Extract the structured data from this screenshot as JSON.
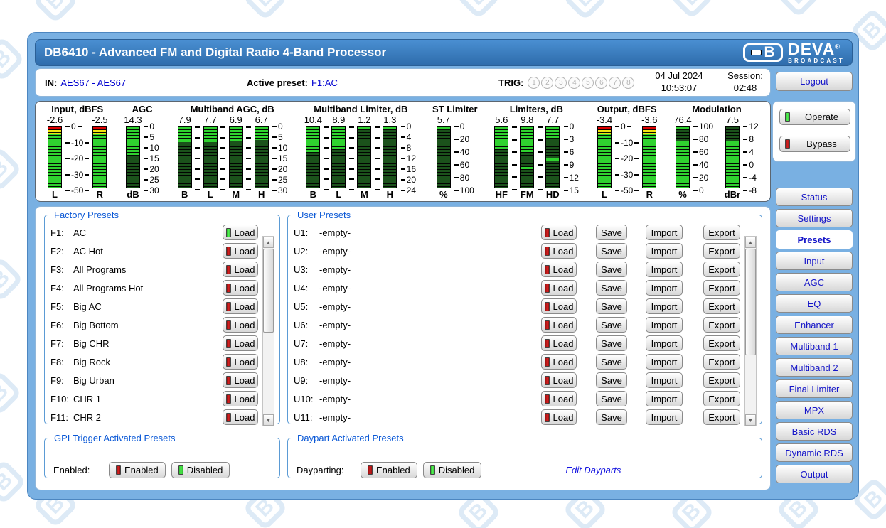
{
  "window": {
    "title": "DB6410 - Advanced FM and Digital Radio 4-Band Processor"
  },
  "branding": {
    "logo_deva": "DEVA",
    "logo_reg": "®",
    "logo_broadcast": "BROADCAST",
    "logo_emblem_letter": "B",
    "watermark_glyph": "B"
  },
  "statusbar": {
    "in_label": "IN:",
    "in_value": "AES67 - AES67",
    "preset_label": "Active preset:",
    "preset_value": "F1:AC",
    "trig_label": "TRIG:",
    "trig_buttons": [
      "1",
      "2",
      "3",
      "4",
      "5",
      "6",
      "7",
      "8"
    ],
    "date": "04 Jul 2024",
    "time": "10:53:07",
    "session_label": "Session:",
    "session_value": "02:48"
  },
  "sidebar": {
    "logout_label": "Logout",
    "operate": {
      "label": "Operate",
      "led": "green"
    },
    "bypass": {
      "label": "Bypass",
      "led": "red"
    },
    "nav": [
      {
        "label": "Status",
        "active": false
      },
      {
        "label": "Settings",
        "active": false
      },
      {
        "label": "Presets",
        "active": true
      },
      {
        "label": "Input",
        "active": false
      },
      {
        "label": "AGC",
        "active": false
      },
      {
        "label": "EQ",
        "active": false
      },
      {
        "label": "Enhancer",
        "active": false
      },
      {
        "label": "Multiband 1",
        "active": false
      },
      {
        "label": "Multiband 2",
        "active": false
      },
      {
        "label": "Final Limiter",
        "active": false
      },
      {
        "label": "MPX",
        "active": false
      },
      {
        "label": "Basic RDS",
        "active": false
      },
      {
        "label": "Dynamic RDS",
        "active": false
      },
      {
        "label": "Output",
        "active": false
      }
    ]
  },
  "meters": {
    "groups": [
      {
        "title": "Input, dBFS",
        "elements": [
          {
            "kind": "bar",
            "name": "L",
            "value": "-2.6",
            "mode": "peak",
            "fill": 100
          },
          {
            "kind": "scale",
            "labels": [
              "0",
              "-10",
              "-20",
              "-30",
              "-50"
            ],
            "dashes": "both"
          },
          {
            "kind": "bar",
            "name": "R",
            "value": "-2.5",
            "mode": "peak",
            "fill": 100
          }
        ]
      },
      {
        "title": "AGC",
        "elements": [
          {
            "kind": "bar",
            "name": "dB",
            "value": "14.3",
            "mode": "gr",
            "fill": 48
          },
          {
            "kind": "scale",
            "labels": [
              "0",
              "5",
              "10",
              "15",
              "20",
              "25",
              "30"
            ],
            "dashes": "left"
          }
        ]
      },
      {
        "title": "Multiband AGC, dB",
        "elements": [
          {
            "kind": "bar",
            "name": "B",
            "value": "7.9",
            "mode": "gr",
            "fill": 26
          },
          {
            "kind": "ticks",
            "n": 7
          },
          {
            "kind": "bar",
            "name": "L",
            "value": "7.7",
            "mode": "gr",
            "fill": 26
          },
          {
            "kind": "ticks",
            "n": 7
          },
          {
            "kind": "bar",
            "name": "M",
            "value": "6.9",
            "mode": "gr",
            "fill": 23
          },
          {
            "kind": "ticks",
            "n": 7
          },
          {
            "kind": "bar",
            "name": "H",
            "value": "6.7",
            "mode": "gr",
            "fill": 22
          },
          {
            "kind": "scale",
            "labels": [
              "0",
              "5",
              "10",
              "15",
              "20",
              "25",
              "30"
            ],
            "dashes": "left"
          }
        ]
      },
      {
        "title": "Multiband Limiter, dB",
        "elements": [
          {
            "kind": "bar",
            "name": "B",
            "value": "10.4",
            "mode": "gr",
            "fill": 43
          },
          {
            "kind": "ticks",
            "n": 7
          },
          {
            "kind": "bar",
            "name": "L",
            "value": "8.9",
            "mode": "gr",
            "fill": 37
          },
          {
            "kind": "ticks",
            "n": 7
          },
          {
            "kind": "bar",
            "name": "M",
            "value": "1.2",
            "mode": "gr",
            "fill": 5
          },
          {
            "kind": "ticks",
            "n": 7
          },
          {
            "kind": "bar",
            "name": "H",
            "value": "1.3",
            "mode": "gr",
            "fill": 5
          },
          {
            "kind": "scale",
            "labels": [
              "0",
              "4",
              "8",
              "12",
              "16",
              "20",
              "24"
            ],
            "dashes": "left"
          }
        ]
      },
      {
        "title": "ST Limiter",
        "elements": [
          {
            "kind": "bar",
            "name": "%",
            "value": "5.7",
            "mode": "gr",
            "fill": 6
          },
          {
            "kind": "scale",
            "labels": [
              "0",
              "20",
              "40",
              "60",
              "80",
              "100"
            ],
            "dashes": "left"
          }
        ]
      },
      {
        "title": "Limiters, dB",
        "elements": [
          {
            "kind": "bar",
            "name": "HF",
            "value": "5.6",
            "mode": "gr",
            "fill": 37
          },
          {
            "kind": "ticks",
            "n": 6
          },
          {
            "kind": "bar",
            "name": "FM",
            "value": "9.8",
            "mode": "gr",
            "fill": 42,
            "marker": 65
          },
          {
            "kind": "ticks",
            "n": 6
          },
          {
            "kind": "bar",
            "name": "HD",
            "value": "7.7",
            "mode": "gr",
            "fill": 21,
            "marker": 51
          },
          {
            "kind": "scale",
            "labels": [
              "0",
              "3",
              "6",
              "9",
              "12",
              "15"
            ],
            "dashes": "left"
          }
        ]
      },
      {
        "title": "Output, dBFS",
        "elements": [
          {
            "kind": "bar",
            "name": "L",
            "value": "-3.4",
            "mode": "peak",
            "fill": 100
          },
          {
            "kind": "scale",
            "labels": [
              "0",
              "-10",
              "-20",
              "-30",
              "-50"
            ],
            "dashes": "both"
          },
          {
            "kind": "bar",
            "name": "R",
            "value": "-3.6",
            "mode": "peak",
            "fill": 100
          }
        ]
      },
      {
        "title": "Modulation",
        "elements": [
          {
            "kind": "bar",
            "name": "%",
            "value": "76.4",
            "mode": "up",
            "fill": 76,
            "marker": 1
          },
          {
            "kind": "scale",
            "labels": [
              "100",
              "80",
              "60",
              "40",
              "20",
              "0"
            ],
            "dashes": "left"
          },
          {
            "kind": "gap"
          },
          {
            "kind": "bar",
            "name": "dBr",
            "value": "7.5",
            "mode": "up",
            "fill": 77
          },
          {
            "kind": "scale",
            "labels": [
              "12",
              "8",
              "4",
              "0",
              "-4",
              "-8"
            ],
            "dashes": "left"
          }
        ]
      }
    ]
  },
  "factory_presets": {
    "legend": "Factory Presets",
    "load_label": "Load",
    "items": [
      {
        "id": "F1:",
        "name": "AC",
        "led": "green"
      },
      {
        "id": "F2:",
        "name": "AC Hot",
        "led": "red"
      },
      {
        "id": "F3:",
        "name": "All Programs",
        "led": "red"
      },
      {
        "id": "F4:",
        "name": "All Programs Hot",
        "led": "red"
      },
      {
        "id": "F5:",
        "name": "Big AC",
        "led": "red"
      },
      {
        "id": "F6:",
        "name": "Big Bottom",
        "led": "red"
      },
      {
        "id": "F7:",
        "name": "Big CHR",
        "led": "red"
      },
      {
        "id": "F8:",
        "name": "Big Rock",
        "led": "red"
      },
      {
        "id": "F9:",
        "name": "Big Urban",
        "led": "red"
      },
      {
        "id": "F10:",
        "name": "CHR 1",
        "led": "red"
      },
      {
        "id": "F11:",
        "name": "CHR 2",
        "led": "red"
      }
    ]
  },
  "user_presets": {
    "legend": "User Presets",
    "load_label": "Load",
    "save_label": "Save",
    "import_label": "Import",
    "export_label": "Export",
    "items": [
      {
        "id": "U1:",
        "name": "-empty-",
        "led": "red"
      },
      {
        "id": "U2:",
        "name": "-empty-",
        "led": "red"
      },
      {
        "id": "U3:",
        "name": "-empty-",
        "led": "red"
      },
      {
        "id": "U4:",
        "name": "-empty-",
        "led": "red"
      },
      {
        "id": "U5:",
        "name": "-empty-",
        "led": "red"
      },
      {
        "id": "U6:",
        "name": "-empty-",
        "led": "red"
      },
      {
        "id": "U7:",
        "name": "-empty-",
        "led": "red"
      },
      {
        "id": "U8:",
        "name": "-empty-",
        "led": "red"
      },
      {
        "id": "U9:",
        "name": "-empty-",
        "led": "red"
      },
      {
        "id": "U10:",
        "name": "-empty-",
        "led": "red"
      },
      {
        "id": "U11:",
        "name": "-empty-",
        "led": "red"
      }
    ]
  },
  "gpi": {
    "legend": "GPI Trigger Activated Presets",
    "label": "Enabled:",
    "enabled_btn": {
      "label": "Enabled",
      "led": "red"
    },
    "disabled_btn": {
      "label": "Disabled",
      "led": "green"
    }
  },
  "daypart": {
    "legend": "Daypart Activated Presets",
    "label": "Dayparting:",
    "enabled_btn": {
      "label": "Enabled",
      "led": "red"
    },
    "disabled_btn": {
      "label": "Disabled",
      "led": "green"
    },
    "link": "Edit Dayparts"
  },
  "colors": {
    "bright_green": "#2fd32f",
    "dark_green": "#1b521b",
    "peak_red": "#e00000",
    "peak_yellow": "#f2e30e",
    "accent_blue": "#0a58d6",
    "nav_text_blue": "#1515c8"
  }
}
